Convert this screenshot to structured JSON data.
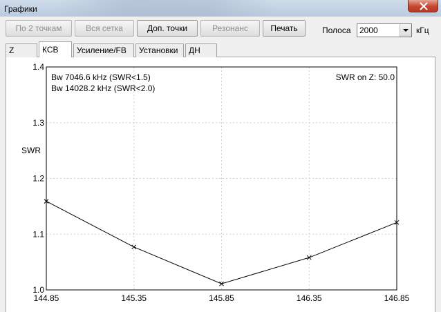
{
  "window": {
    "title": "Графики"
  },
  "toolbar": {
    "buttons": [
      "По 2 точкам",
      "Вся сетка",
      "Доп. точки",
      "Резонанс",
      "Печать"
    ],
    "band_label": "Полоса",
    "band_value": "2000",
    "band_unit": "кГц"
  },
  "tabs": [
    "Z",
    "КСВ",
    "Усиление/FB",
    "Установки",
    "ДН"
  ],
  "active_tab": "КСВ",
  "chart_data": {
    "type": "line",
    "ylabel": "SWR",
    "xlim": [
      144.85,
      146.85
    ],
    "ylim": [
      1.0,
      1.4
    ],
    "x_ticks": [
      "144.85",
      "145.35",
      "145.85",
      "146.35",
      "146.85"
    ],
    "y_ticks": [
      "1.0",
      "1.1",
      "1.2",
      "1.3",
      "1.4"
    ],
    "grid": true,
    "series": [
      {
        "x": [
          144.85,
          145.35,
          145.85,
          146.35,
          146.85
        ],
        "y": [
          1.159,
          1.077,
          1.011,
          1.058,
          1.121
        ]
      }
    ],
    "annotations": {
      "bw1": "Bw 7046.6 kHz (SWR<1.5)",
      "bw2": "Bw 14028.2 kHz (SWR<2.0)",
      "swr_on_z": "SWR on Z: 50.0"
    }
  }
}
